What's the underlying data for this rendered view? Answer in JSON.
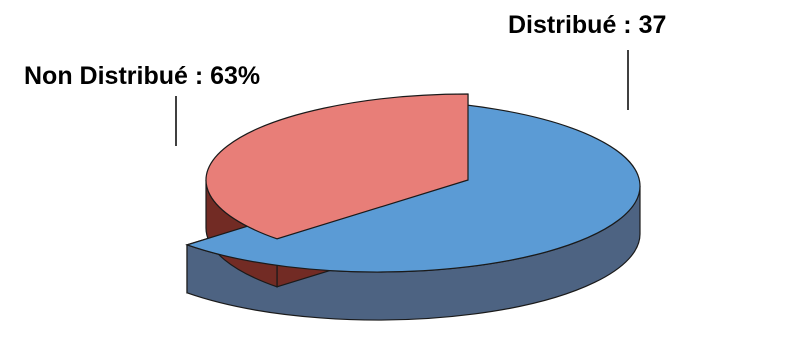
{
  "chart_data": {
    "type": "pie",
    "title": "",
    "slices": [
      {
        "label": "Non Distribué : 63%",
        "value": 63,
        "color": "#5b9bd5",
        "side_color": "#4d6382"
      },
      {
        "label": "Distribué : 37",
        "value": 37,
        "color": "#e87e78",
        "side_color": "#722b24"
      }
    ],
    "legend": "none"
  }
}
